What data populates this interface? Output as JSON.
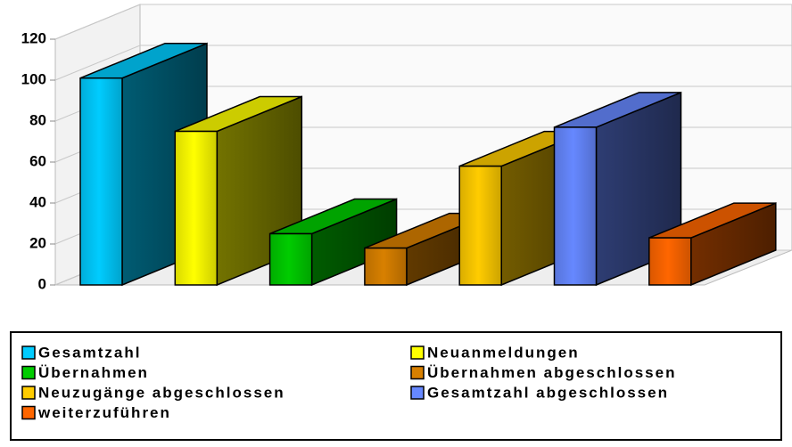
{
  "chart_data": {
    "type": "bar",
    "ylim": [
      0,
      120
    ],
    "yticks": [
      0,
      20,
      40,
      60,
      80,
      100,
      120
    ],
    "grid": true,
    "legend": "bottom",
    "series": [
      {
        "name": "Gesamtzahl",
        "color": "#00ccff",
        "values": [
          101
        ]
      },
      {
        "name": "Neuanmeldungen",
        "color": "#ffff00",
        "values": [
          75
        ]
      },
      {
        "name": "Übernahmen",
        "color": "#00cc00",
        "values": [
          25
        ]
      },
      {
        "name": "Übernahmen abgeschlossen",
        "color": "#d88000",
        "values": [
          18
        ]
      },
      {
        "name": "Neuzugänge abgeschlossen",
        "color": "#ffcc00",
        "values": [
          58
        ]
      },
      {
        "name": "Gesamtzahl abgeschlossen",
        "color": "#6688ff",
        "values": [
          77
        ]
      },
      {
        "name": "weiterzuführen",
        "color": "#ff6600",
        "values": [
          23
        ]
      }
    ]
  }
}
